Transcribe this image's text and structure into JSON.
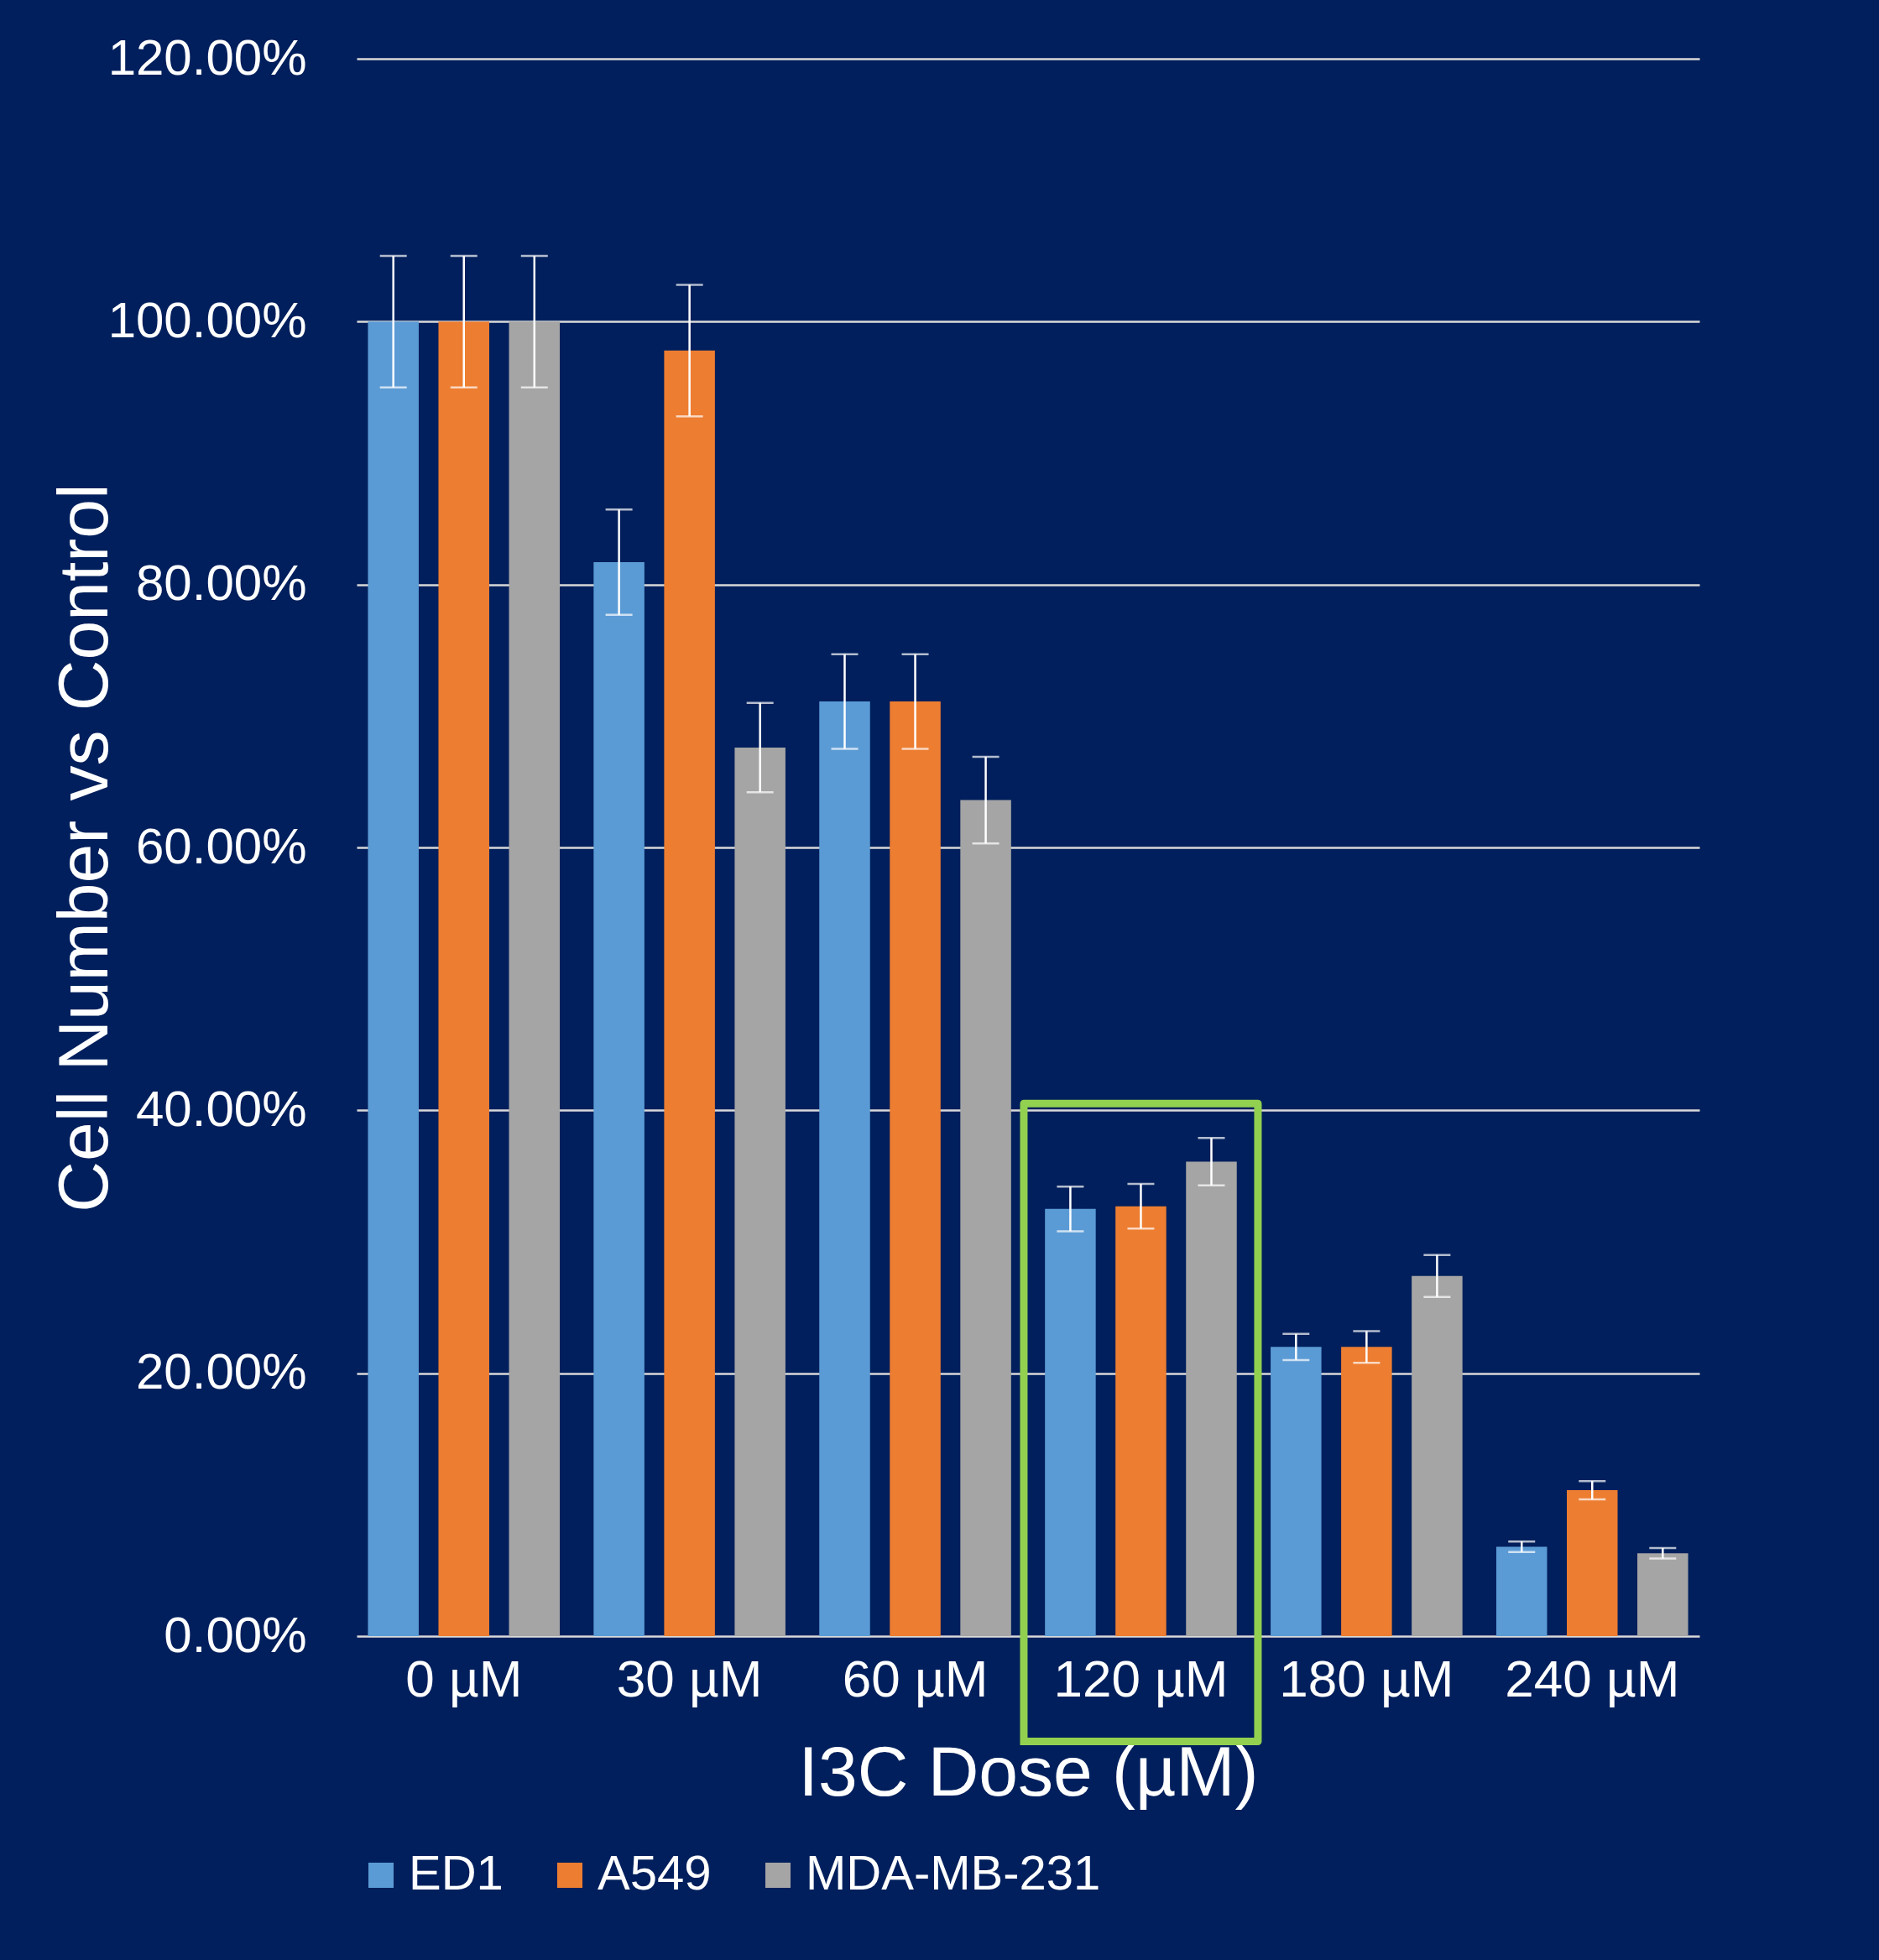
{
  "chart_data": {
    "type": "bar",
    "xlabel": "I3C Dose (µM)",
    "ylabel": "Cell Number vs Control",
    "categories": [
      "0 µM",
      "30 µM",
      "60 µM",
      "120 µM",
      "180 µM",
      "240 µM"
    ],
    "series": [
      {
        "name": "ED1",
        "color": "#5b9bd5",
        "values": [
          100,
          81.7,
          71.1,
          32.5,
          22.0,
          6.8
        ],
        "errors": [
          5,
          4,
          3.6,
          1.7,
          1.0,
          0.4
        ]
      },
      {
        "name": "A549",
        "color": "#ed7d31",
        "values": [
          100,
          97.8,
          71.1,
          32.7,
          22.0,
          11.1
        ],
        "errors": [
          5,
          5,
          3.6,
          1.7,
          1.2,
          0.7
        ]
      },
      {
        "name": "MDA-MB-231",
        "color": "#a5a5a5",
        "values": [
          100,
          67.6,
          63.6,
          36.1,
          27.4,
          6.3
        ],
        "errors": [
          5,
          3.4,
          3.3,
          1.8,
          1.6,
          0.4
        ]
      }
    ],
    "ylim": [
      0,
      120
    ],
    "yticks": [
      {
        "value": 0,
        "label": "0.00%"
      },
      {
        "value": 20,
        "label": "20.00%"
      },
      {
        "value": 40,
        "label": "40.00%"
      },
      {
        "value": 60,
        "label": "60.00%"
      },
      {
        "value": 80,
        "label": "80.00%"
      },
      {
        "value": 100,
        "label": "100.00%"
      },
      {
        "value": 120,
        "label": "120.00%"
      }
    ],
    "grid": "y",
    "legend": "bottom"
  }
}
